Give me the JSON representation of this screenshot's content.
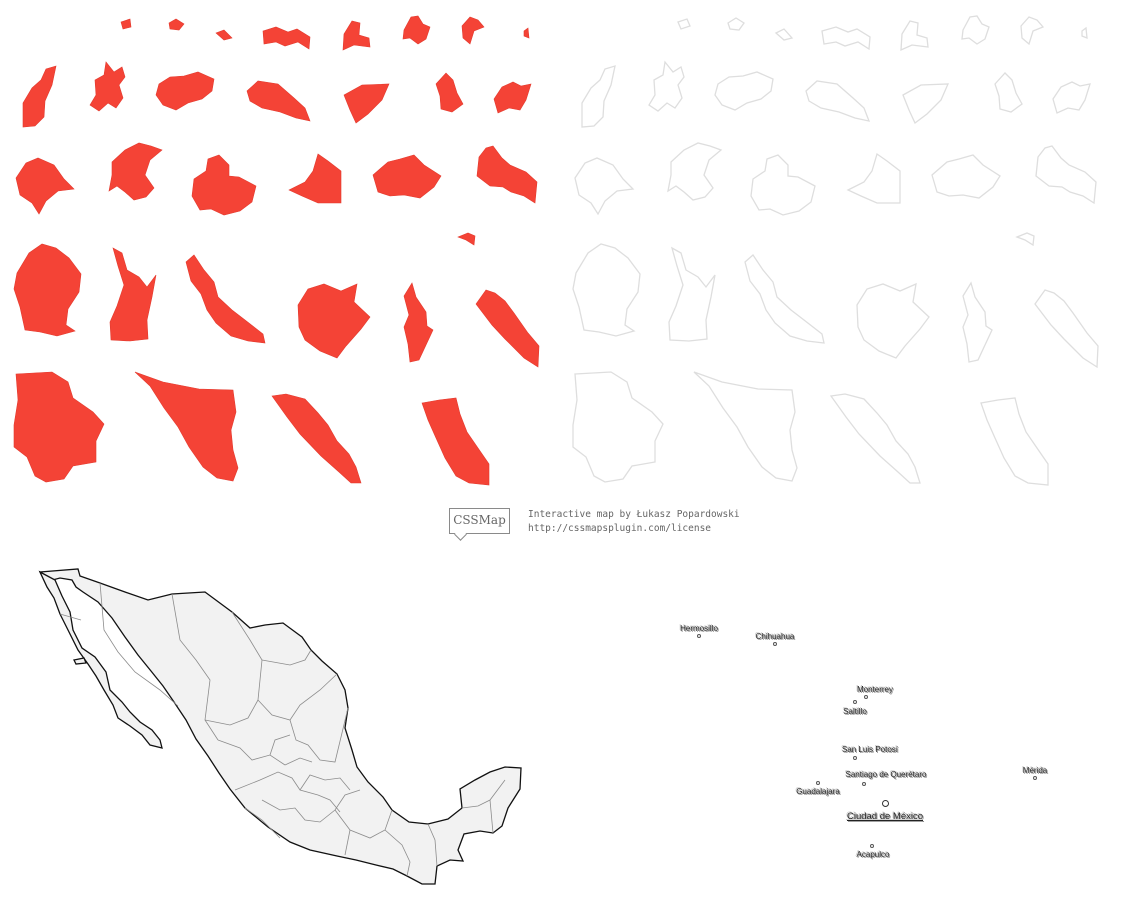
{
  "credit": {
    "logo_text": "CSSMap",
    "line1": "Interactive map by Łukasz Popardowski",
    "line2": "http://cssmapsplugin.com/license"
  },
  "colors": {
    "active_state": "#f44336",
    "inactive_state_outline": "#dedede",
    "map_fill": "#f2f2f2",
    "map_border": "#111111"
  },
  "map": {
    "country": "Mexico"
  },
  "cities": [
    {
      "name": "Hermosillo"
    },
    {
      "name": "Chihuahua"
    },
    {
      "name": "Monterrey"
    },
    {
      "name": "Saltillo"
    },
    {
      "name": "San Luis Potosí"
    },
    {
      "name": "Santiago de Querétaro"
    },
    {
      "name": "Mérida"
    },
    {
      "name": "Guadalajara"
    },
    {
      "name": "Ciudad de México",
      "capital": true
    },
    {
      "name": "Acapulco"
    }
  ]
}
